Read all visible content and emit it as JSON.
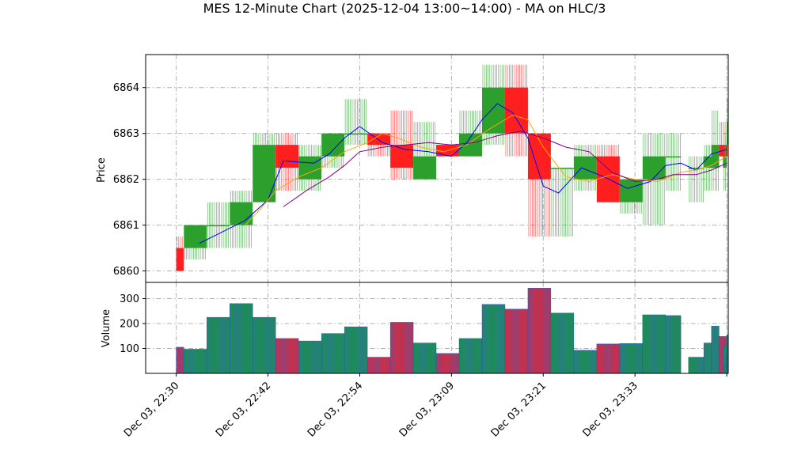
{
  "chart_data": {
    "type": "ohlc-candlestick-with-volume",
    "title": "MES 12-Minute Chart (2025-12-04 13:00~14:00) - MA on HLC/3",
    "price_panel": {
      "ylabel": "Price",
      "yticks": [
        6860,
        6861,
        6862,
        6863,
        6864
      ],
      "ylim": [
        6859.75,
        6864.72
      ],
      "grid": true
    },
    "volume_panel": {
      "ylabel": "Volume",
      "yticks": [
        100,
        200,
        300
      ],
      "ylim": [
        0,
        365
      ],
      "grid": true
    },
    "xaxis": {
      "tick_labels": [
        "Dec 03, 22:30",
        "Dec 03, 22:42",
        "Dec 03, 22:54",
        "Dec 03, 23:09",
        "Dec 03, 23:21",
        "Dec 03, 23:33"
      ],
      "tick_bar_index": [
        0,
        12,
        24,
        36,
        48,
        60
      ],
      "last_tick_bar_index": 72,
      "xlim": [
        -4,
        72.2
      ]
    },
    "colors": {
      "up": "#2ca02c",
      "down": "#ff1f1f",
      "volume_up": "#1f8a5e",
      "volume_down": "#c0314f",
      "ma_fast": "#0000ff",
      "ma_mid": "#ffa500",
      "ma_slow": "#800080"
    },
    "bars": [
      {
        "i": 0,
        "w": 1,
        "open": 6860.5,
        "high": 6860.75,
        "low": 6860.0,
        "close": 6860.0,
        "volume": 105
      },
      {
        "i": 1,
        "w": 3,
        "open": 6860.5,
        "high": 6861.0,
        "low": 6860.25,
        "close": 6861.0,
        "volume": 97
      },
      {
        "i": 4,
        "w": 3,
        "open": 6861.0,
        "high": 6861.5,
        "low": 6860.5,
        "close": 6861.0,
        "volume": 225
      },
      {
        "i": 7,
        "w": 3,
        "open": 6861.0,
        "high": 6861.75,
        "low": 6860.5,
        "close": 6861.5,
        "volume": 280
      },
      {
        "i": 10,
        "w": 3,
        "open": 6861.5,
        "high": 6863.0,
        "low": 6861.5,
        "close": 6862.75,
        "volume": 225
      },
      {
        "i": 13,
        "w": 3,
        "open": 6862.75,
        "high": 6863.0,
        "low": 6861.75,
        "close": 6862.25,
        "volume": 140
      },
      {
        "i": 16,
        "w": 3,
        "open": 6862.0,
        "high": 6862.75,
        "low": 6861.75,
        "close": 6862.5,
        "volume": 130
      },
      {
        "i": 19,
        "w": 3,
        "open": 6862.5,
        "high": 6863.0,
        "low": 6862.25,
        "close": 6863.0,
        "volume": 160
      },
      {
        "i": 22,
        "w": 3,
        "open": 6863.0,
        "high": 6863.75,
        "low": 6862.75,
        "close": 6863.0,
        "volume": 187
      },
      {
        "i": 25,
        "w": 3,
        "open": 6863.0,
        "high": 6863.0,
        "low": 6862.5,
        "close": 6862.75,
        "volume": 65
      },
      {
        "i": 28,
        "w": 3,
        "open": 6862.75,
        "high": 6863.5,
        "low": 6862.0,
        "close": 6862.25,
        "volume": 205
      },
      {
        "i": 31,
        "w": 3,
        "open": 6862.0,
        "high": 6863.25,
        "low": 6862.0,
        "close": 6862.5,
        "volume": 122
      },
      {
        "i": 34,
        "w": 3,
        "open": 6862.75,
        "high": 6862.75,
        "low": 6862.5,
        "close": 6862.5,
        "volume": 80
      },
      {
        "i": 37,
        "w": 3,
        "open": 6862.5,
        "high": 6863.5,
        "low": 6862.5,
        "close": 6863.0,
        "volume": 140
      },
      {
        "i": 40,
        "w": 3,
        "open": 6863.0,
        "high": 6864.5,
        "low": 6862.75,
        "close": 6864.0,
        "volume": 277
      },
      {
        "i": 43,
        "w": 3,
        "open": 6864.0,
        "high": 6864.5,
        "low": 6862.5,
        "close": 6863.0,
        "volume": 258
      },
      {
        "i": 46,
        "w": 3,
        "open": 6863.0,
        "high": 6863.0,
        "low": 6860.75,
        "close": 6862.0,
        "volume": 342
      },
      {
        "i": 49,
        "w": 3,
        "open": 6862.25,
        "high": 6862.25,
        "low": 6860.75,
        "close": 6862.25,
        "volume": 242
      },
      {
        "i": 52,
        "w": 3,
        "open": 6862.0,
        "high": 6862.75,
        "low": 6861.75,
        "close": 6862.5,
        "volume": 93
      },
      {
        "i": 55,
        "w": 3,
        "open": 6862.5,
        "high": 6862.75,
        "low": 6861.5,
        "close": 6861.5,
        "volume": 118
      },
      {
        "i": 58,
        "w": 3,
        "open": 6861.5,
        "high": 6862.0,
        "low": 6861.25,
        "close": 6862.0,
        "volume": 120
      },
      {
        "i": 61,
        "w": 3,
        "open": 6862.0,
        "high": 6863.0,
        "low": 6861.0,
        "close": 6862.5,
        "volume": 235
      },
      {
        "i": 64,
        "w": 2,
        "open": 6862.5,
        "high": 6863.0,
        "low": 6861.75,
        "close": 6862.5,
        "volume": 232
      },
      {
        "i": 67,
        "w": 2,
        "open": 6862.25,
        "high": 6862.5,
        "low": 6861.5,
        "close": 6862.25,
        "volume": 65
      },
      {
        "i": 69,
        "w": 2,
        "open": 6862.25,
        "high": 6862.75,
        "low": 6861.75,
        "close": 6862.5,
        "volume": 122
      },
      {
        "i": 70,
        "w": 1,
        "open": 6862.5,
        "high": 6863.5,
        "low": 6862.25,
        "close": 6862.75,
        "volume": 190
      },
      {
        "i": 71,
        "w": 1,
        "open": 6862.75,
        "high": 6863.25,
        "low": 6862.5,
        "close": 6862.5,
        "volume": 148
      },
      {
        "i": 71.5,
        "w": 0.5,
        "open": 6862.25,
        "high": 6862.5,
        "low": 6861.75,
        "close": 6862.5,
        "volume": 108
      },
      {
        "i": 71.7,
        "w": 0.3,
        "open": 6862.5,
        "high": 6863.0,
        "low": 6862.25,
        "close": 6862.75,
        "volume": 30
      },
      {
        "i": 71.9,
        "w": 0.2,
        "open": 6862.75,
        "high": 6862.75,
        "low": 6862.5,
        "close": 6862.5,
        "volume": 75
      },
      {
        "i": 72,
        "w": 0.2,
        "open": 6862.75,
        "high": 6863.75,
        "low": 6862.75,
        "close": 6863.25,
        "volume": 155
      }
    ],
    "ma_fast": [
      [
        3,
        6860.6
      ],
      [
        6,
        6860.85
      ],
      [
        9,
        6861.1
      ],
      [
        12,
        6861.55
      ],
      [
        14,
        6862.4
      ],
      [
        18,
        6862.35
      ],
      [
        20,
        6862.55
      ],
      [
        22,
        6862.9
      ],
      [
        24,
        6863.15
      ],
      [
        27,
        6862.8
      ],
      [
        30,
        6862.65
      ],
      [
        33,
        6862.6
      ],
      [
        36,
        6862.5
      ],
      [
        38,
        6862.8
      ],
      [
        40,
        6863.3
      ],
      [
        42,
        6863.65
      ],
      [
        44,
        6863.45
      ],
      [
        46,
        6862.9
      ],
      [
        48,
        6861.85
      ],
      [
        50,
        6861.7
      ],
      [
        53,
        6862.25
      ],
      [
        56,
        6862.05
      ],
      [
        59,
        6861.8
      ],
      [
        62,
        6861.95
      ],
      [
        64,
        6862.3
      ],
      [
        66,
        6862.35
      ],
      [
        68,
        6862.2
      ],
      [
        70,
        6862.55
      ],
      [
        71,
        6862.6
      ],
      [
        72,
        6862.65
      ]
    ],
    "ma_mid": [
      [
        9,
        6861.0
      ],
      [
        11,
        6861.35
      ],
      [
        13,
        6861.75
      ],
      [
        16,
        6862.05
      ],
      [
        19,
        6862.25
      ],
      [
        22,
        6862.6
      ],
      [
        25,
        6862.8
      ],
      [
        27,
        6863.0
      ],
      [
        29,
        6862.9
      ],
      [
        32,
        6862.7
      ],
      [
        35,
        6862.6
      ],
      [
        38,
        6862.75
      ],
      [
        41,
        6863.1
      ],
      [
        44,
        6863.4
      ],
      [
        46,
        6863.3
      ],
      [
        48,
        6862.7
      ],
      [
        51,
        6862.05
      ],
      [
        54,
        6861.95
      ],
      [
        57,
        6862.1
      ],
      [
        60,
        6862.0
      ],
      [
        63,
        6861.95
      ],
      [
        66,
        6862.15
      ],
      [
        68,
        6862.2
      ],
      [
        70,
        6862.3
      ],
      [
        72,
        6862.5
      ]
    ],
    "ma_slow": [
      [
        14,
        6861.4
      ],
      [
        17,
        6861.75
      ],
      [
        20,
        6862.05
      ],
      [
        22,
        6862.3
      ],
      [
        24,
        6862.6
      ],
      [
        27,
        6862.7
      ],
      [
        30,
        6862.75
      ],
      [
        33,
        6862.8
      ],
      [
        36,
        6862.75
      ],
      [
        39,
        6862.8
      ],
      [
        42,
        6862.95
      ],
      [
        45,
        6863.05
      ],
      [
        48,
        6862.9
      ],
      [
        51,
        6862.7
      ],
      [
        54,
        6862.6
      ],
      [
        57,
        6862.15
      ],
      [
        60,
        6861.95
      ],
      [
        63,
        6862.0
      ],
      [
        65,
        6862.1
      ],
      [
        68,
        6862.1
      ],
      [
        70,
        6862.2
      ],
      [
        72,
        6862.35
      ]
    ]
  }
}
